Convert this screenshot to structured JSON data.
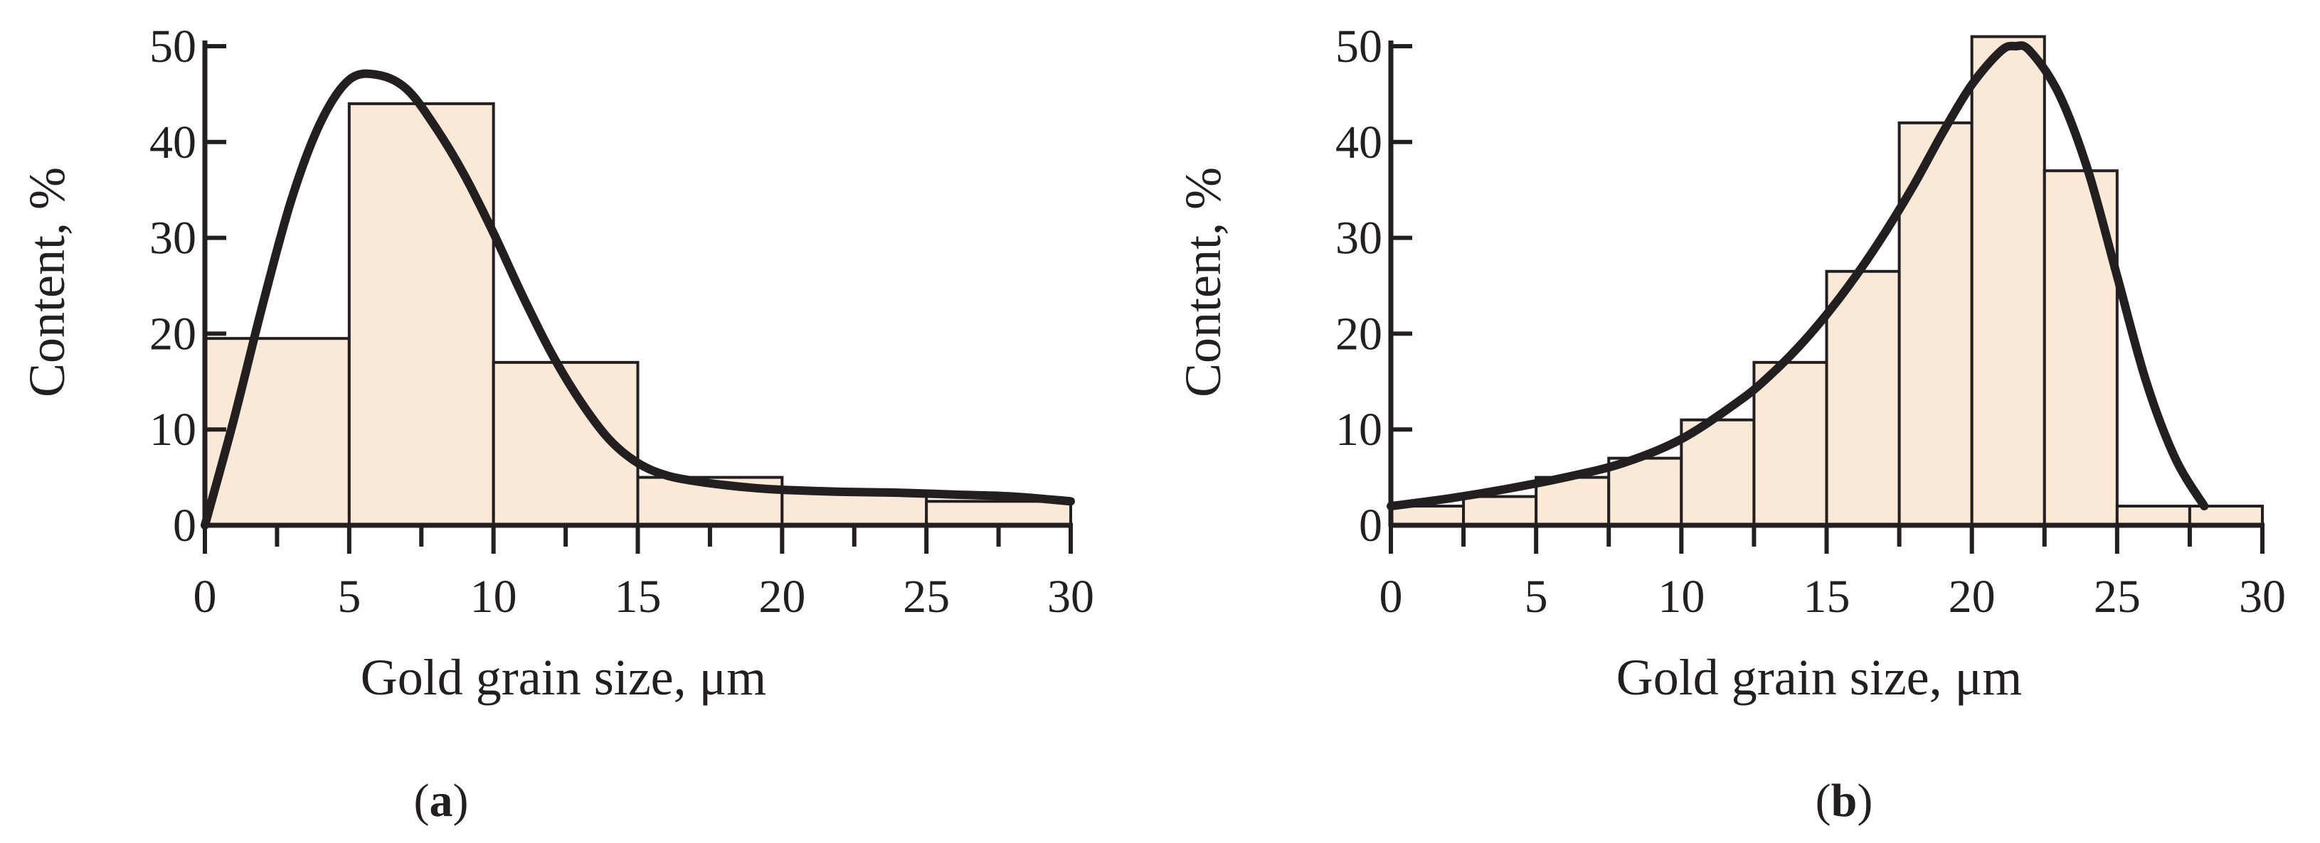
{
  "colors": {
    "bar_fill": "#fbe9d7",
    "bar_stroke": "#231f20",
    "curve": "#231f20",
    "axis": "#231f20"
  },
  "chart_data": [
    {
      "id": "a",
      "type": "bar",
      "panel_label": "a",
      "xlabel": "Gold grain size, μm",
      "ylabel": "Content, %",
      "xlim": [
        0,
        30
      ],
      "ylim": [
        0,
        50
      ],
      "x_ticks": [
        0,
        5,
        10,
        15,
        20,
        25,
        30
      ],
      "y_ticks": [
        0,
        10,
        20,
        30,
        40,
        50
      ],
      "x_minor_tick_step": 2.5,
      "grid": false,
      "bins": [
        {
          "from": 0,
          "to": 5,
          "value": 19.5
        },
        {
          "from": 5,
          "to": 10,
          "value": 44
        },
        {
          "from": 10,
          "to": 15,
          "value": 17
        },
        {
          "from": 15,
          "to": 20,
          "value": 5
        },
        {
          "from": 20,
          "to": 25,
          "value": 3.5
        },
        {
          "from": 25,
          "to": 30,
          "value": 2.5
        }
      ],
      "curve": {
        "type": "line",
        "x": [
          0,
          1,
          2,
          3,
          4,
          5,
          6,
          7,
          8,
          9,
          10,
          11,
          12,
          13,
          14,
          15,
          16,
          17,
          18,
          19,
          20,
          22,
          24,
          26,
          28,
          30
        ],
        "y": [
          0,
          11,
          23,
          34,
          42,
          46.5,
          47,
          45.5,
          41.5,
          36.5,
          30.5,
          24,
          18,
          13,
          9,
          6.5,
          5.2,
          4.6,
          4.2,
          3.9,
          3.7,
          3.5,
          3.4,
          3.2,
          3.0,
          2.5
        ]
      }
    },
    {
      "id": "b",
      "type": "bar",
      "panel_label": "b",
      "xlabel": "Gold grain size, μm",
      "ylabel": "Content, %",
      "xlim": [
        0,
        30
      ],
      "ylim": [
        0,
        50
      ],
      "x_ticks": [
        0,
        5,
        10,
        15,
        20,
        25,
        30
      ],
      "y_ticks": [
        0,
        10,
        20,
        30,
        40,
        50
      ],
      "x_minor_tick_step": 2.5,
      "grid": false,
      "bins": [
        {
          "from": 0,
          "to": 2.5,
          "value": 2
        },
        {
          "from": 2.5,
          "to": 5,
          "value": 3
        },
        {
          "from": 5,
          "to": 7.5,
          "value": 5
        },
        {
          "from": 7.5,
          "to": 10,
          "value": 7
        },
        {
          "from": 10,
          "to": 12.5,
          "value": 11
        },
        {
          "from": 12.5,
          "to": 15,
          "value": 17
        },
        {
          "from": 15,
          "to": 17.5,
          "value": 26.5
        },
        {
          "from": 17.5,
          "to": 20,
          "value": 42
        },
        {
          "from": 20,
          "to": 22.5,
          "value": 51
        },
        {
          "from": 22.5,
          "to": 25,
          "value": 37
        },
        {
          "from": 25,
          "to": 27.5,
          "value": 2
        },
        {
          "from": 27.5,
          "to": 30,
          "value": 2
        }
      ],
      "curve": {
        "type": "line",
        "x": [
          0,
          2,
          4,
          6,
          8,
          10,
          12,
          13,
          14,
          15,
          16,
          17,
          18,
          19,
          20,
          21,
          21.5,
          22,
          23,
          24,
          25,
          26,
          27,
          28
        ],
        "y": [
          2,
          2.8,
          3.8,
          5,
          6.5,
          9,
          13,
          15.5,
          18.5,
          22,
          26,
          30.5,
          35.5,
          41,
          46,
          49.5,
          50,
          49.5,
          45,
          37,
          26,
          15,
          7,
          2
        ]
      }
    }
  ]
}
